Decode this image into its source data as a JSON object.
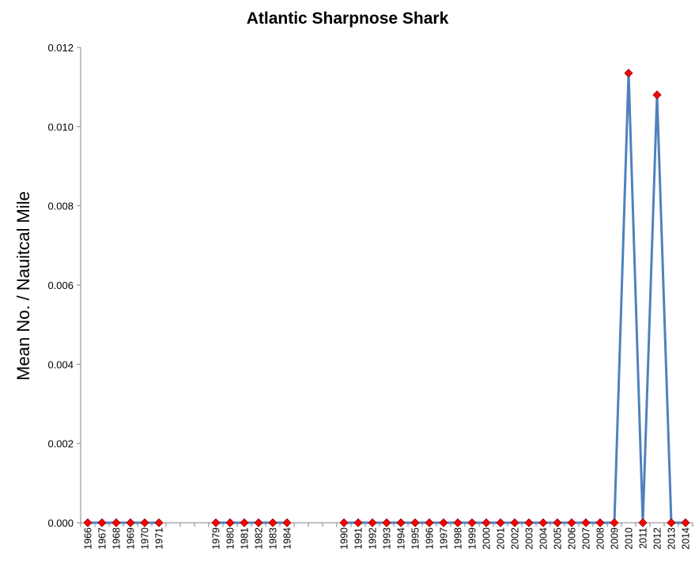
{
  "chart_data": {
    "type": "line",
    "title": "Atlantic Sharpnose Shark",
    "xlabel": "",
    "ylabel": "Mean No. / Nauitcal Mile",
    "ylim": [
      0,
      0.012
    ],
    "yticks": [
      "0.000",
      "0.002",
      "0.004",
      "0.006",
      "0.008",
      "0.010",
      "0.012"
    ],
    "line_color": "#4F81BD",
    "marker_color": "#FF0000",
    "marker": "diamond",
    "categories": [
      "1966",
      "1967",
      "1968",
      "1969",
      "1970",
      "1971",
      "",
      "",
      "",
      "1979",
      "1980",
      "1981",
      "1982",
      "1983",
      "1984",
      "",
      "",
      "",
      "1990",
      "1991",
      "1992",
      "1993",
      "1994",
      "1995",
      "1996",
      "1997",
      "1998",
      "1999",
      "2000",
      "2001",
      "2002",
      "2003",
      "2004",
      "2005",
      "2006",
      "2007",
      "2008",
      "2009",
      "2010",
      "2011",
      "2012",
      "2013",
      "2014"
    ],
    "series": [
      {
        "values": [
          0,
          0,
          0,
          0,
          0,
          0,
          null,
          null,
          null,
          0,
          0,
          0,
          0,
          0,
          0,
          null,
          null,
          null,
          0,
          0,
          0,
          0,
          0,
          0,
          0,
          0,
          0,
          0,
          0,
          0,
          0,
          0,
          0,
          0,
          0,
          0,
          0,
          0,
          0.01135,
          0,
          0.0108,
          0,
          0
        ]
      }
    ],
    "grid": false,
    "legend": "none"
  }
}
